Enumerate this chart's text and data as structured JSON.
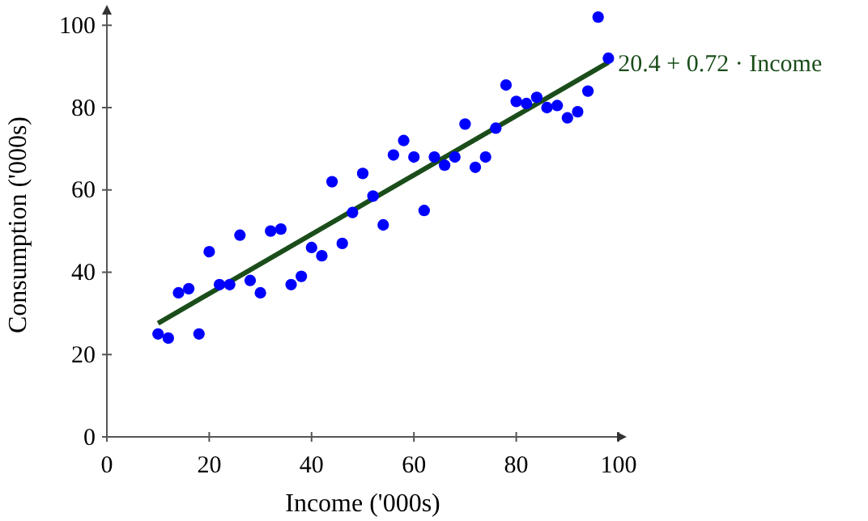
{
  "chart_data": {
    "type": "scatter",
    "xlabel": "Income ('000s)",
    "ylabel": "Consumption ('000s)",
    "xlim": [
      0,
      100
    ],
    "ylim": [
      0,
      103
    ],
    "xticks": [
      0,
      20,
      40,
      60,
      80,
      100
    ],
    "yticks": [
      0,
      20,
      40,
      60,
      80,
      100
    ],
    "grid": false,
    "legend": false,
    "marker": "circle",
    "series": [
      {
        "color": "#0000ff",
        "x": [
          10,
          12,
          14,
          16,
          18,
          20,
          22,
          24,
          26,
          28,
          30,
          32,
          34,
          36,
          38,
          40,
          42,
          44,
          46,
          48,
          50,
          52,
          54,
          56,
          58,
          60,
          62,
          64,
          66,
          68,
          70,
          72,
          74,
          76,
          78,
          80,
          82,
          84,
          86,
          88,
          90,
          92,
          94,
          96,
          98
        ],
        "values": [
          25,
          24,
          35,
          36,
          25,
          45,
          37,
          37,
          49,
          38,
          35,
          50,
          50.5,
          37,
          39,
          46,
          44,
          62,
          47,
          54.5,
          64,
          58.5,
          51.5,
          68.5,
          72,
          68,
          55,
          68,
          66,
          68,
          76,
          65.5,
          68,
          75,
          85.5,
          81.5,
          81,
          82.5,
          80,
          80.5,
          77.5,
          79,
          84,
          102,
          92
        ]
      },
      {
        "type": "line",
        "name": "20.4 + 0.72 · Income",
        "color": "#1a4d1a",
        "line_style": "solid",
        "marker": "none",
        "x": [
          10,
          98
        ],
        "values": [
          27.6,
          91
        ]
      }
    ]
  }
}
